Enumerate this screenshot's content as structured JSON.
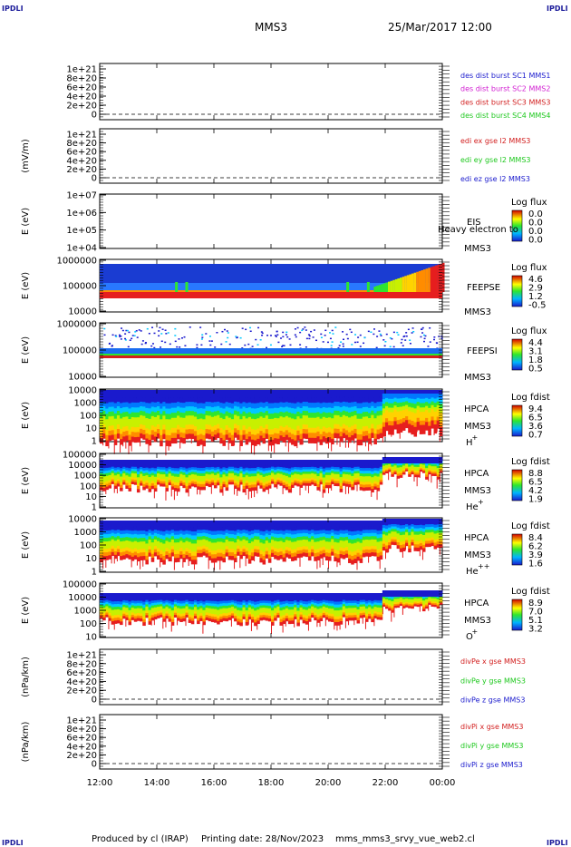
{
  "header": {
    "corner_label": "IPDLI",
    "spacecraft": "MMS3",
    "datetime": "25/Mar/2017 12:00"
  },
  "footer": {
    "produced_by": "Produced by cl (IRAP)",
    "printing_date": "Printing date: 28/Nov/2023",
    "script_name": "mms_mms3_srvy_vue_web2.cl"
  },
  "colors": {
    "blue": "#1a1acd",
    "magenta": "#d21ed2",
    "red": "#d21e1e",
    "green": "#1ec81e",
    "purple": "#8c1ec8"
  },
  "chart_data": [
    {
      "type": "line",
      "id": "panel1",
      "ylabel": "",
      "yticks": [
        "1e+21",
        "8e+20",
        "6e+20",
        "4e+20",
        "2e+20",
        "0"
      ],
      "legend": [
        {
          "text": "des dist burst SC1 MMS1",
          "color": "blue"
        },
        {
          "text": "des dist burst SC2 MMS2",
          "color": "magenta"
        },
        {
          "text": "des dist burst SC3 MMS3",
          "color": "red"
        },
        {
          "text": "des dist burst SC4 MMS4",
          "color": "green"
        }
      ]
    },
    {
      "type": "line",
      "id": "panel2",
      "ylabel": "(mV/m)",
      "yticks": [
        "1e+21",
        "8e+20",
        "6e+20",
        "4e+20",
        "2e+20",
        "0"
      ],
      "legend": [
        {
          "text": "edi ex gse l2 MMS3",
          "color": "red"
        },
        {
          "text": "edi ey gse l2 MMS3",
          "color": "green"
        },
        {
          "text": "edi ez gse l2 MMS3",
          "color": "blue"
        }
      ]
    },
    {
      "type": "heatmap",
      "id": "eis",
      "ylabel": "E (eV)",
      "yticks": [
        "1e+07",
        "1e+06",
        "1e+05",
        "1e+04"
      ],
      "instrument": [
        "EIS",
        "MMS3"
      ],
      "overlay_text": "Heavy electron to",
      "colorbar_title": "Log flux",
      "colorbar_values": [
        "0.0",
        "0.0",
        "0.0",
        "0.0"
      ]
    },
    {
      "type": "heatmap",
      "id": "feepse",
      "ylabel": "E (eV)",
      "yticks": [
        "1000000",
        "100000",
        "10000"
      ],
      "instrument": [
        "FEEPSE",
        "MMS3"
      ],
      "colorbar_title": "Log flux",
      "colorbar_values": [
        "4.6",
        "2.9",
        "1.2",
        "-0.5"
      ]
    },
    {
      "type": "heatmap",
      "id": "feepsi",
      "ylabel": "E (eV)",
      "yticks": [
        "1000000",
        "100000",
        "10000"
      ],
      "instrument": [
        "FEEPSI",
        "MMS3"
      ],
      "colorbar_title": "Log flux",
      "colorbar_values": [
        "4.4",
        "3.1",
        "1.8",
        "0.5"
      ]
    },
    {
      "type": "heatmap",
      "id": "hpca_h",
      "ylabel": "E (eV)",
      "yticks": [
        "10000",
        "1000",
        "100",
        "10",
        "1"
      ],
      "instrument": [
        "HPCA",
        "MMS3"
      ],
      "species": "H",
      "charge": "+",
      "colorbar_title": "Log fdist",
      "colorbar_values": [
        "9.4",
        "6.5",
        "3.6",
        "0.7"
      ]
    },
    {
      "type": "heatmap",
      "id": "hpca_he",
      "ylabel": "E (eV)",
      "yticks": [
        "100000",
        "10000",
        "1000",
        "100",
        "10",
        "1"
      ],
      "instrument": [
        "HPCA",
        "MMS3"
      ],
      "species": "He",
      "charge": "+",
      "colorbar_title": "Log fdist",
      "colorbar_values": [
        "8.8",
        "6.5",
        "4.2",
        "1.9"
      ]
    },
    {
      "type": "heatmap",
      "id": "hpca_he2",
      "ylabel": "E (eV)",
      "yticks": [
        "10000",
        "1000",
        "100",
        "10",
        "1"
      ],
      "instrument": [
        "HPCA",
        "MMS3"
      ],
      "species": "He",
      "charge": "++",
      "colorbar_title": "Log fdist",
      "colorbar_values": [
        "8.4",
        "6.2",
        "3.9",
        "1.6"
      ]
    },
    {
      "type": "heatmap",
      "id": "hpca_o",
      "ylabel": "E (eV)",
      "yticks": [
        "100000",
        "10000",
        "1000",
        "100",
        "10"
      ],
      "instrument": [
        "HPCA",
        "MMS3"
      ],
      "species": "O",
      "charge": "+",
      "colorbar_title": "Log fdist",
      "colorbar_values": [
        "8.9",
        "7.0",
        "5.1",
        "3.2"
      ]
    },
    {
      "type": "line",
      "id": "divpe",
      "ylabel": "(nPa/km)",
      "yticks": [
        "1e+21",
        "8e+20",
        "6e+20",
        "4e+20",
        "2e+20",
        "0"
      ],
      "legend": [
        {
          "text": "divPe x gse MMS3",
          "color": "red"
        },
        {
          "text": "divPe y gse MMS3",
          "color": "green"
        },
        {
          "text": "divPe z gse MMS3",
          "color": "blue"
        }
      ]
    },
    {
      "type": "line",
      "id": "divpi",
      "ylabel": "(nPa/km)",
      "yticks": [
        "1e+21",
        "8e+20",
        "6e+20",
        "4e+20",
        "2e+20",
        "0"
      ],
      "legend": [
        {
          "text": "divPi x gse MMS3",
          "color": "red"
        },
        {
          "text": "divPi y gse MMS3",
          "color": "green"
        },
        {
          "text": "divPi z gse MMS3",
          "color": "blue"
        }
      ]
    }
  ],
  "time_axis": {
    "ticks": [
      "12:00",
      "14:00",
      "16:00",
      "18:00",
      "20:00",
      "22:00",
      "00:00"
    ]
  }
}
